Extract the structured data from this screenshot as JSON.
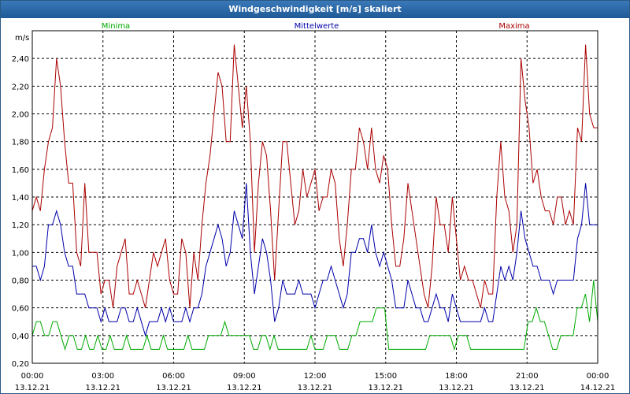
{
  "window": {
    "title": "Windgeschwindigkeit [m/s] skaliert"
  },
  "chart_data": {
    "type": "line",
    "title": "Windgeschwindigkeit [m/s] skaliert",
    "ylabel": "m/s",
    "ylim": [
      0.2,
      2.6
    ],
    "y_ticks": [
      "2,40",
      "2,20",
      "2,00",
      "1,80",
      "1,60",
      "1,40",
      "1,20",
      "1,00",
      "0,80",
      "0,60",
      "0,40",
      "0,20"
    ],
    "y_tick_values": [
      2.4,
      2.2,
      2.0,
      1.8,
      1.6,
      1.4,
      1.2,
      1.0,
      0.8,
      0.6,
      0.4,
      0.2
    ],
    "x_range_hours": [
      0,
      24
    ],
    "x_ticks": [
      {
        "time": "00:00",
        "date": "13.12.21",
        "hour": 0
      },
      {
        "time": "03:00",
        "date": "13.12.21",
        "hour": 3
      },
      {
        "time": "06:00",
        "date": "13.12.21",
        "hour": 6
      },
      {
        "time": "09:00",
        "date": "13.12.21",
        "hour": 9
      },
      {
        "time": "12:00",
        "date": "13.12.21",
        "hour": 12
      },
      {
        "time": "15:00",
        "date": "13.12.21",
        "hour": 15
      },
      {
        "time": "18:00",
        "date": "13.12.21",
        "hour": 18
      },
      {
        "time": "21:00",
        "date": "13.12.21",
        "hour": 21
      },
      {
        "time": "00:00",
        "date": "14.12.21",
        "hour": 24
      }
    ],
    "legend": [
      {
        "name": "Minima",
        "color": "#00aa00"
      },
      {
        "name": "Mittelwerte",
        "color": "#0000aa"
      },
      {
        "name": "Maxima",
        "color": "#aa0000"
      }
    ],
    "series": [
      {
        "name": "Maxima",
        "color": "#aa0000",
        "values": [
          1.3,
          1.4,
          1.3,
          1.6,
          1.8,
          1.9,
          2.4,
          2.2,
          1.8,
          1.5,
          1.5,
          1.0,
          0.9,
          1.5,
          1.0,
          1.0,
          1.0,
          0.7,
          0.8,
          0.8,
          0.6,
          0.9,
          1.0,
          1.1,
          0.7,
          0.7,
          0.8,
          0.7,
          0.6,
          0.8,
          1.0,
          0.9,
          1.0,
          1.1,
          0.8,
          0.7,
          0.7,
          1.1,
          1.0,
          0.6,
          1.0,
          0.8,
          1.2,
          1.5,
          1.7,
          2.0,
          2.3,
          2.2,
          1.8,
          1.8,
          2.5,
          2.2,
          1.9,
          2.2,
          1.8,
          1.0,
          1.5,
          1.8,
          1.7,
          1.3,
          0.8,
          1.3,
          1.8,
          1.8,
          1.5,
          1.2,
          1.3,
          1.6,
          1.4,
          1.5,
          1.6,
          1.3,
          1.4,
          1.4,
          1.6,
          1.5,
          1.1,
          0.9,
          1.2,
          1.6,
          1.6,
          1.9,
          1.8,
          1.6,
          1.9,
          1.6,
          1.5,
          1.7,
          1.6,
          1.2,
          0.9,
          0.9,
          1.1,
          1.5,
          1.3,
          1.1,
          0.9,
          0.7,
          0.6,
          0.9,
          1.4,
          1.2,
          1.2,
          1.0,
          1.4,
          1.1,
          0.8,
          0.9,
          0.8,
          0.8,
          0.7,
          0.6,
          0.8,
          0.7,
          0.7,
          1.4,
          1.8,
          1.4,
          1.3,
          1.0,
          1.2,
          2.4,
          2.1,
          1.9,
          1.5,
          1.6,
          1.4,
          1.3,
          1.3,
          1.2,
          1.4,
          1.4,
          1.2,
          1.3,
          1.2,
          1.9,
          1.8,
          2.5,
          2.0,
          1.9,
          1.9
        ]
      },
      {
        "name": "Mittelwerte",
        "color": "#0000aa",
        "values": [
          0.9,
          0.9,
          0.8,
          0.9,
          1.2,
          1.2,
          1.3,
          1.2,
          1.0,
          0.9,
          0.9,
          0.7,
          0.7,
          0.7,
          0.6,
          0.6,
          0.6,
          0.5,
          0.6,
          0.5,
          0.5,
          0.5,
          0.6,
          0.6,
          0.5,
          0.5,
          0.6,
          0.5,
          0.4,
          0.5,
          0.5,
          0.5,
          0.6,
          0.5,
          0.6,
          0.5,
          0.5,
          0.5,
          0.6,
          0.5,
          0.6,
          0.6,
          0.7,
          0.9,
          1.0,
          1.1,
          1.2,
          1.1,
          0.9,
          1.0,
          1.3,
          1.2,
          1.1,
          1.5,
          1.0,
          0.7,
          0.9,
          1.1,
          1.0,
          0.8,
          0.5,
          0.6,
          0.8,
          0.7,
          0.7,
          0.7,
          0.8,
          0.7,
          0.7,
          0.7,
          0.6,
          0.7,
          0.8,
          0.8,
          0.9,
          0.8,
          0.7,
          0.6,
          0.7,
          1.0,
          1.0,
          1.1,
          1.1,
          1.0,
          1.2,
          1.0,
          0.9,
          1.0,
          0.9,
          0.8,
          0.6,
          0.6,
          0.6,
          0.8,
          0.7,
          0.6,
          0.6,
          0.5,
          0.5,
          0.6,
          0.7,
          0.6,
          0.6,
          0.5,
          0.7,
          0.6,
          0.5,
          0.5,
          0.5,
          0.5,
          0.5,
          0.5,
          0.6,
          0.5,
          0.5,
          0.7,
          0.9,
          0.8,
          0.9,
          0.8,
          1.0,
          1.3,
          1.1,
          1.0,
          0.9,
          0.9,
          0.8,
          0.8,
          0.8,
          0.7,
          0.8,
          0.8,
          0.8,
          0.8,
          0.8,
          1.1,
          1.2,
          1.5,
          1.2,
          1.2,
          1.2
        ]
      },
      {
        "name": "Minima",
        "color": "#00aa00",
        "values": [
          0.4,
          0.5,
          0.5,
          0.4,
          0.4,
          0.5,
          0.5,
          0.4,
          0.3,
          0.4,
          0.4,
          0.3,
          0.3,
          0.4,
          0.3,
          0.3,
          0.4,
          0.3,
          0.3,
          0.4,
          0.3,
          0.3,
          0.3,
          0.4,
          0.3,
          0.3,
          0.3,
          0.3,
          0.4,
          0.3,
          0.3,
          0.3,
          0.4,
          0.3,
          0.3,
          0.3,
          0.3,
          0.3,
          0.4,
          0.3,
          0.3,
          0.3,
          0.3,
          0.4,
          0.4,
          0.4,
          0.4,
          0.5,
          0.4,
          0.4,
          0.4,
          0.4,
          0.4,
          0.4,
          0.3,
          0.3,
          0.4,
          0.4,
          0.3,
          0.4,
          0.3,
          0.3,
          0.3,
          0.3,
          0.3,
          0.3,
          0.3,
          0.3,
          0.4,
          0.3,
          0.3,
          0.3,
          0.4,
          0.4,
          0.4,
          0.3,
          0.3,
          0.3,
          0.4,
          0.4,
          0.5,
          0.5,
          0.5,
          0.5,
          0.6,
          0.6,
          0.6,
          0.3,
          0.3,
          0.3,
          0.3,
          0.3,
          0.3,
          0.3,
          0.3,
          0.3,
          0.3,
          0.4,
          0.4,
          0.4,
          0.4,
          0.4,
          0.4,
          0.3,
          0.4,
          0.4,
          0.4,
          0.3,
          0.3,
          0.3,
          0.3,
          0.3,
          0.3,
          0.3,
          0.3,
          0.3,
          0.3,
          0.3,
          0.3,
          0.3,
          0.3,
          0.5,
          0.5,
          0.6,
          0.5,
          0.5,
          0.4,
          0.3,
          0.3,
          0.4,
          0.4,
          0.4,
          0.4,
          0.6,
          0.6,
          0.7,
          0.5,
          0.8,
          0.5
        ]
      }
    ]
  }
}
